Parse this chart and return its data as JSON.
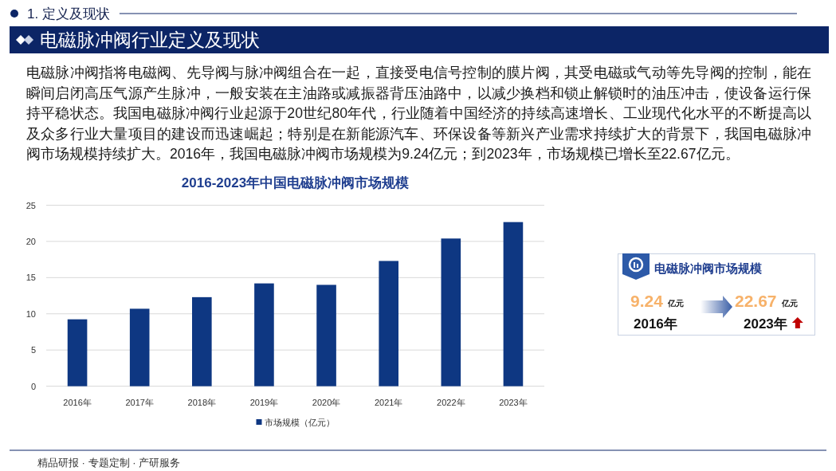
{
  "chart_data": [
    {
      "type": "bar",
      "title": "2016-2023年中国电磁脉冲阀市场规模",
      "categories": [
        "2016年",
        "2017年",
        "2018年",
        "2019年",
        "2020年",
        "2021年",
        "2022年",
        "2023年"
      ],
      "series": [
        {
          "name": "市场规模（亿元）",
          "color": "#0e3782",
          "values": [
            9.24,
            10.7,
            12.3,
            14.2,
            14.0,
            17.3,
            20.4,
            22.67
          ]
        }
      ],
      "ylim": [
        0,
        25
      ],
      "yticks": [
        0,
        5,
        10,
        15,
        20,
        25
      ],
      "grid": "y",
      "legend": "bottom",
      "annotations": [
        "1. 定义及现状",
        "电磁脉冲阀行业定义及现状",
        "电磁脉冲阀指将电磁阀、先导阀与脉冲阀组合在一起，直接受电信号控制的膜片阀，其受电磁或气动等先导阀的控制，能在瞬间启闭高压气源产生脉冲，一般安装在主油路或减振器背压油路中，以减少换档和锁止解锁时的油压冲击，使设备运行保持平稳状态。我国电磁脉冲阀行业起源于20世纪80年代，行业随着中国经济的持续高速增长、工业现代化水平的不断提高以及众多行业大量项目的建设而迅速崛起；特别是在新能源汽车、环保设备等新兴产业需求持续扩大的背景下，我国电磁脉冲阀市场规模持续扩大。2016年，我国电磁脉冲阀市场规模为9.24亿元；到2023年，市场规模已增长至22.67亿元。",
        "精品研报 · 专题定制 · 产研服务"
      ]
    },
    {
      "type": "other",
      "title": "电磁脉冲阀市场规模",
      "annotations": [
        "9.24",
        "亿元",
        "2016年",
        "22.67",
        "亿元",
        "2023年"
      ]
    }
  ]
}
